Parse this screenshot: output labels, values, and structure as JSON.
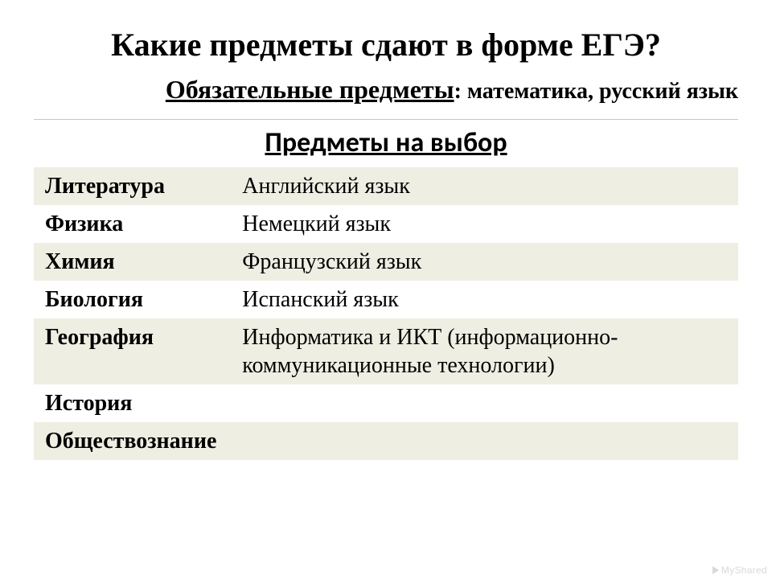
{
  "title": "Какие предметы сдают в форме ЕГЭ?",
  "mandatory": {
    "label": "Обязательные предметы",
    "rest": ": математика, русский язык"
  },
  "optional_title": "Предметы на выбор",
  "table": {
    "columns": [
      "left",
      "right"
    ],
    "col_widths_pct": [
      28,
      72
    ],
    "row_bg_colors": [
      "#eeeee3",
      "#ffffff"
    ],
    "left_font_weight": "bold",
    "right_font_weight": "normal",
    "cell_fontsize_pt": 21,
    "rows": [
      {
        "left": "Литература",
        "right": "Английский язык"
      },
      {
        "left": "Физика",
        "right": "Немецкий язык"
      },
      {
        "left": "Химия",
        "right": "Французский язык"
      },
      {
        "left": "Биология",
        "right": "Испанский язык"
      },
      {
        "left": "География",
        "right": "Информатика и ИКТ (информационно-коммуникационные технологии)"
      },
      {
        "left": "История",
        "right": ""
      },
      {
        "left": "Обществознание",
        "right": ""
      }
    ]
  },
  "watermark": "MyShared",
  "style": {
    "background_color": "#ffffff",
    "text_color": "#000000",
    "title_fontsize_pt": 30,
    "title_font_family": "Times New Roman",
    "optional_title_font_family": "Calibri",
    "optional_title_fontsize_pt": 26,
    "divider_color": "#c7c7c7",
    "watermark_color": "#d9d9d9"
  }
}
